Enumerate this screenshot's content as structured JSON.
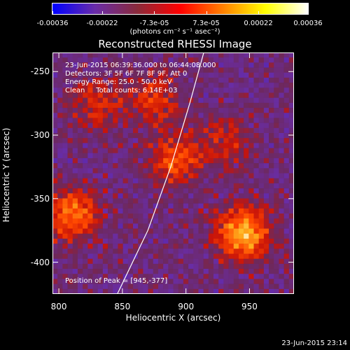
{
  "chart_data": {
    "type": "heatmap",
    "title": "Reconstructed RHESSI Image",
    "xlabel": "Heliocentric X (arcsec)",
    "ylabel": "Heliocentric Y (arcsec)",
    "xlim": [
      795,
      985
    ],
    "ylim": [
      -425,
      -235
    ],
    "x_ticks": [
      "800",
      "850",
      "900",
      "950"
    ],
    "x_tick_values": [
      800,
      850,
      900,
      950
    ],
    "y_ticks": [
      "-250",
      "-300",
      "-350",
      "-400"
    ],
    "y_tick_values": [
      -250,
      -300,
      -350,
      -400
    ],
    "colorbar": {
      "ticks": [
        "-0.00036",
        "-0.00022",
        "-7.3e-05",
        "7.3e-05",
        "0.00022",
        "0.00036"
      ],
      "tick_values": [
        -0.00036,
        -0.00022,
        -7.3e-05,
        7.3e-05,
        0.00022,
        0.00036
      ],
      "range": [
        -0.00036,
        0.00036
      ],
      "units": "(photons cm⁻² s⁻¹ asec⁻²)",
      "colors": [
        "#0000ff",
        "#6a2ca8",
        "#8a2a3a",
        "#ff0000",
        "#ff8000",
        "#ffff00",
        "#ffffff"
      ]
    },
    "annotations": {
      "time_range": "23-Jun-2015 06:39:36.000 to 06:44:08.000",
      "detectors": "Detectors: 3F 5F 6F 7F 8F 9F, Att 0",
      "energy": "Energy Range: 25.0 - 50.0 keV",
      "clean": "Clean     Total counts: 6.14E+03",
      "peak": "Position of Peak = [945,-377]"
    },
    "sources": [
      {
        "x": 945,
        "y": -377,
        "value": 0.00036
      },
      {
        "x": 810,
        "y": -363,
        "value": 0.00028
      },
      {
        "x": 892,
        "y": -320,
        "value": 0.00022
      },
      {
        "x": 875,
        "y": -272,
        "value": 0.00018
      },
      {
        "x": 830,
        "y": -275,
        "value": 0.00016
      },
      {
        "x": 930,
        "y": -305,
        "value": 0.00012
      }
    ],
    "limb_arc": [
      [
        846,
        -425
      ],
      [
        870,
        -375
      ],
      [
        888,
        -325
      ],
      [
        903,
        -275
      ],
      [
        914,
        -235
      ]
    ]
  },
  "footer": {
    "timestamp": "23-Jun-2015 23:14"
  }
}
